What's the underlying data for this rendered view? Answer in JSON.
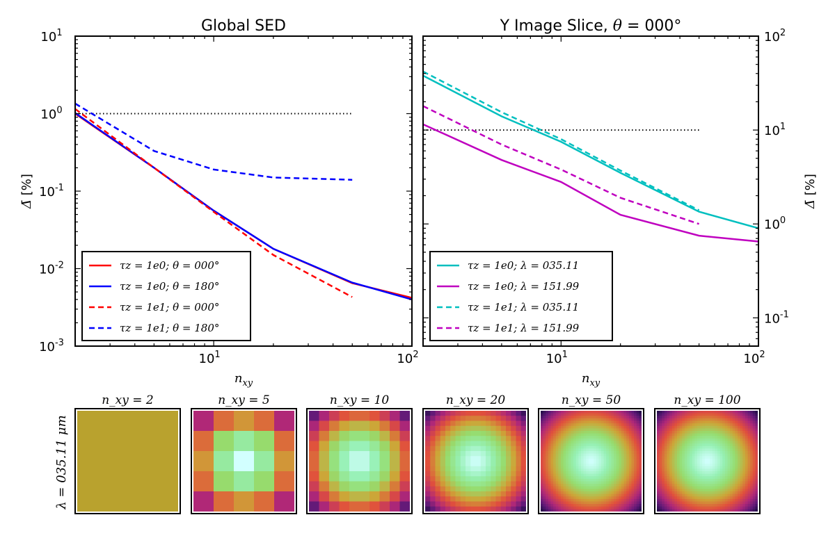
{
  "chart_data": [
    {
      "type": "line",
      "title": "Global SED",
      "xlabel": "n_xy",
      "ylabel": "Δ̄ [%]",
      "xscale": "log",
      "yscale": "log",
      "xlim": [
        2,
        100
      ],
      "ylim": [
        0.001,
        10
      ],
      "x_ticks": [
        {
          "label": "10",
          "sup": "1",
          "value": 10
        },
        {
          "label": "10",
          "sup": "2",
          "value": 100
        }
      ],
      "y_ticks": [
        {
          "label": "10",
          "sup": "-3",
          "value": 0.001
        },
        {
          "label": "10",
          "sup": "-2",
          "value": 0.01
        },
        {
          "label": "10",
          "sup": "-1",
          "value": 0.1
        },
        {
          "label": "10",
          "sup": "0",
          "value": 1
        },
        {
          "label": "10",
          "sup": "1",
          "value": 10
        }
      ],
      "legend_position": "lower-left",
      "series": [
        {
          "name": "τz = 1e0; θ = 000°",
          "color": "#ff0000",
          "dash": "solid",
          "x": [
            2,
            5,
            10,
            20,
            50,
            100
          ],
          "y": [
            1.0,
            0.2,
            0.056,
            0.018,
            0.0065,
            0.0042
          ]
        },
        {
          "name": "τz = 1e0; θ = 180°",
          "color": "#0000ff",
          "dash": "solid",
          "x": [
            2,
            5,
            10,
            20,
            50,
            100
          ],
          "y": [
            1.02,
            0.2,
            0.056,
            0.018,
            0.0066,
            0.004
          ]
        },
        {
          "name": "τz = 1e1; θ = 000°",
          "color": "#ff0000",
          "dash": "dashed",
          "x": [
            2,
            5,
            10,
            20,
            50
          ],
          "y": [
            1.15,
            0.2,
            0.054,
            0.015,
            0.0043
          ]
        },
        {
          "name": "τz = 1e1; θ = 180°",
          "color": "#0000ff",
          "dash": "dashed",
          "x": [
            2,
            5,
            10,
            20,
            50
          ],
          "y": [
            1.35,
            0.33,
            0.19,
            0.15,
            0.14
          ]
        }
      ],
      "reference_line": {
        "y": 1,
        "x_range": [
          2,
          50
        ],
        "style": "dotted"
      }
    },
    {
      "type": "line",
      "title": "Y Image Slice, θ = 000°",
      "xlabel": "n_xy",
      "ylabel": "Δ̄ [%]",
      "xscale": "log",
      "yscale": "log",
      "xlim": [
        2,
        100
      ],
      "ylim": [
        0.05,
        100
      ],
      "y_axis_side": "right",
      "x_ticks": [
        {
          "label": "10",
          "sup": "1",
          "value": 10
        },
        {
          "label": "10",
          "sup": "2",
          "value": 100
        }
      ],
      "y_ticks": [
        {
          "label": "10",
          "sup": "-1",
          "value": 0.1
        },
        {
          "label": "10",
          "sup": "0",
          "value": 1
        },
        {
          "label": "10",
          "sup": "1",
          "value": 10
        },
        {
          "label": "10",
          "sup": "2",
          "value": 100
        }
      ],
      "legend_position": "lower-left",
      "series": [
        {
          "name": "τz = 1e0; λ = 035.11",
          "color": "#00bfbf",
          "dash": "solid",
          "x": [
            2,
            5,
            10,
            20,
            50,
            100
          ],
          "y": [
            38,
            14,
            7.5,
            3.5,
            1.35,
            0.9
          ]
        },
        {
          "name": "τz = 1e0; λ = 151.99",
          "color": "#bf00bf",
          "dash": "solid",
          "x": [
            2,
            5,
            10,
            20,
            50,
            100
          ],
          "y": [
            11.5,
            4.8,
            2.8,
            1.25,
            0.75,
            0.65
          ]
        },
        {
          "name": "τz = 1e1; λ = 035.11",
          "color": "#00bfbf",
          "dash": "dashed",
          "x": [
            2,
            5,
            10,
            20,
            50
          ],
          "y": [
            42,
            15.5,
            8,
            3.7,
            1.4
          ]
        },
        {
          "name": "τz = 1e1; λ = 151.99",
          "color": "#bf00bf",
          "dash": "dashed",
          "x": [
            2,
            5,
            10,
            20,
            50
          ],
          "y": [
            18,
            7,
            3.8,
            1.9,
            1.0
          ]
        }
      ],
      "reference_line": {
        "y": 10,
        "x_range": [
          2,
          50
        ],
        "style": "dotted"
      }
    }
  ],
  "image_row": {
    "row_label": "λ = 035.11 μm",
    "panels": [
      {
        "label": "n_xy = 2",
        "n": 2
      },
      {
        "label": "n_xy = 5",
        "n": 5
      },
      {
        "label": "n_xy = 10",
        "n": 10
      },
      {
        "label": "n_xy = 20",
        "n": 20
      },
      {
        "label": "n_xy = 50",
        "n": 50
      },
      {
        "label": "n_xy = 100",
        "n": 100
      }
    ]
  },
  "colors": {
    "axis": "#000000",
    "dotted": "#000000"
  }
}
